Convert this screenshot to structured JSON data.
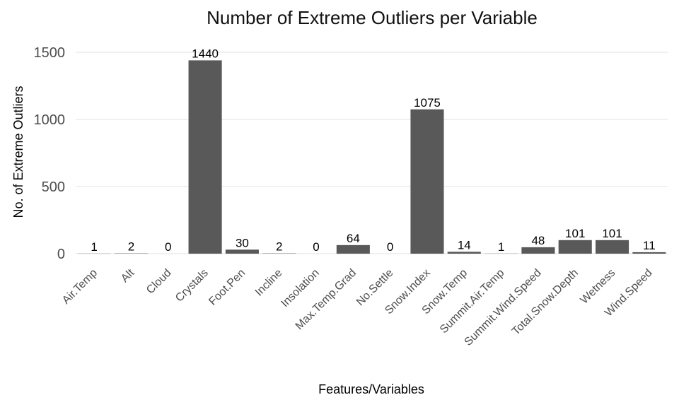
{
  "chart_data": {
    "type": "bar",
    "title": "Number of Extreme Outliers per Variable",
    "xlabel": "Features/Variables",
    "ylabel": "No. of Extreme Outliers",
    "categories": [
      "Air.Temp",
      "Alt",
      "Cloud",
      "Crystals",
      "Foot.Pen",
      "Incline",
      "Insolation",
      "Max.Temp.Grad",
      "No.Settle",
      "Snow.Index",
      "Snow.Temp",
      "Summit.Air.Temp",
      "Summit.Wind.Speed",
      "Total.Snow.Depth",
      "Wetness",
      "Wind.Speed"
    ],
    "values": [
      1,
      2,
      0,
      1440,
      30,
      2,
      0,
      64,
      0,
      1075,
      14,
      1,
      48,
      101,
      101,
      11
    ],
    "ylim": [
      0,
      1500
    ],
    "yticks": [
      0,
      500,
      1000,
      1500
    ],
    "grid": "horizontal",
    "bar_color": "#595959",
    "grid_color": "#ebebeb"
  }
}
